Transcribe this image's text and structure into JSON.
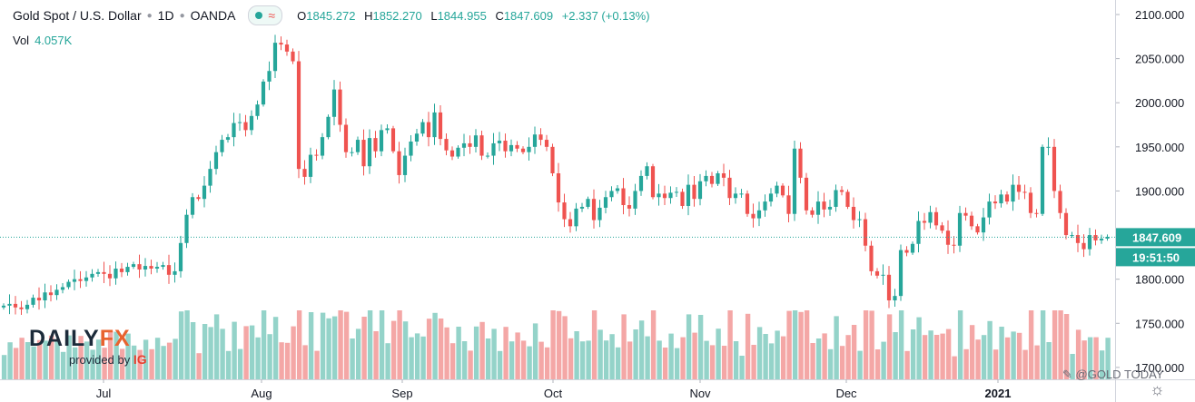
{
  "legend": {
    "symbol": "Gold Spot / U.S. Dollar",
    "interval": "1D",
    "exchange": "OANDA",
    "open_label": "O",
    "open": "1845.272",
    "high_label": "H",
    "high": "1852.270",
    "low_label": "L",
    "low": "1844.955",
    "close_label": "C",
    "close": "1847.609",
    "change": "+2.337 (+0.13%)"
  },
  "volume": {
    "label": "Vol",
    "value": "4.057K"
  },
  "price_tag": "1847.609",
  "time_tag": "19:51:50",
  "logo": {
    "main_a": "DAILY",
    "main_b": "FX",
    "provided_by": "provided by",
    "ig": "IG"
  },
  "watermark": "@GOLD TODAY",
  "colors": {
    "up": "#26a69a",
    "down": "#ef5350",
    "vol_up": "#94d3c9",
    "vol_down": "#f4a7a6"
  },
  "chart_data": {
    "type": "candlestick",
    "y_ticks": [
      "2100.000",
      "2050.000",
      "2000.000",
      "1950.000",
      "1900.000",
      "1850.000",
      "1800.000",
      "1750.000",
      "1700.000"
    ],
    "y_range": [
      1680,
      2115
    ],
    "x_ticks": [
      "Jul",
      "Aug",
      "Sep",
      "Oct",
      "Nov",
      "Dec",
      "2021"
    ],
    "last_price": 1847.609,
    "closes": [
      1770,
      1772,
      1768,
      1766,
      1771,
      1779,
      1776,
      1785,
      1782,
      1788,
      1791,
      1797,
      1800,
      1798,
      1802,
      1806,
      1808,
      1806,
      1801,
      1812,
      1808,
      1814,
      1817,
      1811,
      1815,
      1812,
      1814,
      1816,
      1805,
      1809,
      1841,
      1873,
      1893,
      1891,
      1906,
      1925,
      1944,
      1958,
      1961,
      1977,
      1978,
      1969,
      1985,
      1998,
      2024,
      2036,
      2068,
      2066,
      2058,
      2047,
      1925,
      1916,
      1941,
      1940,
      1961,
      1984,
      2015,
      1975,
      1944,
      1944,
      1958,
      1928,
      1960,
      1945,
      1969,
      1971,
      1945,
      1918,
      1940,
      1956,
      1965,
      1978,
      1961,
      1989,
      1959,
      1946,
      1939,
      1949,
      1954,
      1950,
      1963,
      1940,
      1940,
      1954,
      1957,
      1945,
      1952,
      1948,
      1944,
      1950,
      1964,
      1958,
      1950,
      1920,
      1887,
      1868,
      1860,
      1880,
      1882,
      1891,
      1867,
      1881,
      1893,
      1900,
      1903,
      1884,
      1880,
      1900,
      1917,
      1928,
      1893,
      1897,
      1892,
      1898,
      1899,
      1883,
      1907,
      1891,
      1911,
      1917,
      1908,
      1920,
      1915,
      1892,
      1897,
      1897,
      1874,
      1869,
      1878,
      1888,
      1897,
      1906,
      1895,
      1874,
      1948,
      1915,
      1878,
      1873,
      1888,
      1879,
      1882,
      1901,
      1899,
      1882,
      1867,
      1868,
      1838,
      1809,
      1804,
      1805,
      1776,
      1781,
      1833,
      1830,
      1840,
      1866,
      1864,
      1876,
      1861,
      1855,
      1839,
      1838,
      1875,
      1872,
      1860,
      1853,
      1870,
      1888,
      1886,
      1896,
      1888,
      1907,
      1899,
      1898,
      1875,
      1874,
      1950,
      1950,
      1900,
      1875,
      1850,
      1850,
      1841,
      1834,
      1850,
      1844,
      1846,
      1848
    ]
  }
}
